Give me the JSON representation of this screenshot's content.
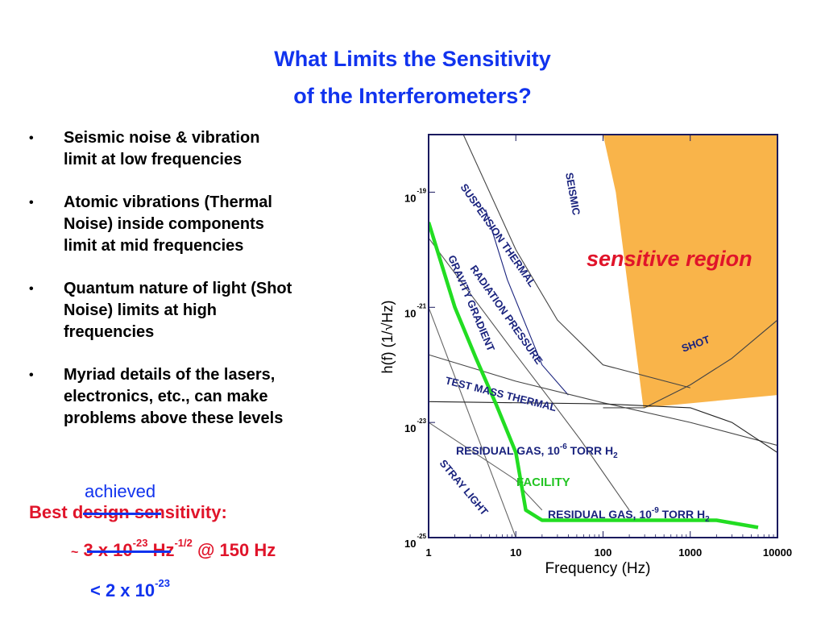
{
  "title": {
    "line1": "What Limits the Sensitivity",
    "line2": "of the Interferometers?"
  },
  "bullets": [
    {
      "symbol": "•",
      "text": [
        "Seismic noise & vibration",
        "limit at low frequencies"
      ]
    },
    {
      "symbol": "•",
      "text": [
        "Atomic vibrations (Thermal",
        "Noise) inside components",
        "limit at mid frequencies"
      ]
    },
    {
      "symbol": "•",
      "text": [
        "Quantum nature of light (Shot",
        "Noise) limits at high",
        "frequencies"
      ]
    },
    {
      "symbol": "•",
      "text": [
        "Myriad details of the lasers,",
        "electronics, etc., can make",
        "problems above these levels"
      ]
    }
  ],
  "sensitivity": {
    "achieved": "achieved",
    "best": "Best",
    "design": "design",
    "sensitivity_label": "sensitivity:",
    "tilde": "~",
    "design_value_base": "3 x 10",
    "design_value_exp": "-23",
    "unit_base": "Hz",
    "unit_exp": "-1/2",
    "at_freq": "@ 150 Hz",
    "achieved_value_base": "< 2 x 10",
    "achieved_value_exp": "-23"
  },
  "chart_data": {
    "type": "line",
    "xlabel": "Frequency (Hz)",
    "ylabel": "h(f)  (1/√Hz)",
    "xscale": "log",
    "yscale": "log",
    "xlim": [
      1,
      10000
    ],
    "ylim": [
      1e-25,
      1e-18
    ],
    "x_ticks": [
      "1",
      "10",
      "100",
      "1000",
      "10000"
    ],
    "y_ticks": [
      {
        "base": "10",
        "exp": "-19"
      },
      {
        "base": "10",
        "exp": "-21"
      },
      {
        "base": "10",
        "exp": "-23"
      },
      {
        "base": "10",
        "exp": "-25"
      }
    ],
    "region_label": "sensitive region",
    "region_color": "#f9b44a",
    "region_polygon": [
      [
        1.6,
        1e-18
      ],
      [
        10000,
        1e-18
      ],
      [
        10000,
        3e-23
      ],
      [
        290,
        1.8e-23
      ],
      [
        140,
        1e-19
      ],
      [
        100,
        1e-18
      ]
    ],
    "series": [
      {
        "name": "SEISMIC",
        "color": "#1a237e",
        "points": [
          [
            4.5,
            5e-20
          ],
          [
            8,
            3e-21
          ],
          [
            20,
            1e-22
          ],
          [
            40,
            3e-23
          ]
        ]
      },
      {
        "name": "SUSPENSION THERMAL",
        "color": "#444444",
        "points": [
          [
            2.5,
            1e-18
          ],
          [
            10,
            1e-20
          ],
          [
            30,
            6e-22
          ],
          [
            100,
            1e-22
          ],
          [
            1000,
            4e-23
          ]
        ]
      },
      {
        "name": "RADIATION PRESSURE",
        "color": "#555555",
        "points": [
          [
            1,
            1.6e-20
          ],
          [
            10,
            1.5e-22
          ],
          [
            30,
            1.7e-23
          ],
          [
            55,
            5e-24
          ],
          [
            200,
            3e-25
          ]
        ]
      },
      {
        "name": "GRAVITY GRADIENT",
        "color": "#666666",
        "points": [
          [
            1,
            1e-21
          ],
          [
            10,
            1e-25
          ]
        ]
      },
      {
        "name": "TEST MASS THERMAL",
        "color": "#444444",
        "points": [
          [
            1,
            1.5e-22
          ],
          [
            10,
            5.2e-23
          ],
          [
            100,
            2.2e-23
          ],
          [
            1000,
            1e-23
          ],
          [
            10000,
            4e-24
          ]
        ]
      },
      {
        "name": "SHOT",
        "color": "#444444",
        "points": [
          [
            100,
            1.8e-23
          ],
          [
            300,
            1.8e-23
          ],
          [
            1000,
            4.5e-23
          ],
          [
            3000,
            1.3e-22
          ],
          [
            10000,
            6e-22
          ]
        ]
      },
      {
        "name": "RESIDUAL GAS, 10-6 TORR H2",
        "color": "#222222",
        "points": [
          [
            1,
            2.3e-23
          ],
          [
            100,
            2.1e-23
          ],
          [
            1000,
            1.8e-23
          ],
          [
            3000,
            1e-23
          ],
          [
            10000,
            3e-24
          ]
        ]
      },
      {
        "name": "STRAY LIGHT",
        "color": "#666666",
        "points": [
          [
            1,
            1e-23
          ],
          [
            10,
            1e-24
          ],
          [
            13,
            6e-25
          ],
          [
            20,
            3e-25
          ]
        ]
      },
      {
        "name": "RESIDUAL GAS, 10-9 TORR H2",
        "color": "#1a237e",
        "points": []
      },
      {
        "name": "FACILITY",
        "color": "#22dd22",
        "points": [
          [
            1,
            3e-20
          ],
          [
            2,
            1e-21
          ],
          [
            3.5,
            1.3e-22
          ],
          [
            6,
            2e-23
          ],
          [
            10,
            3e-24
          ],
          [
            13,
            3e-25
          ],
          [
            20,
            2e-25
          ],
          [
            2000,
            2e-25
          ],
          [
            6000,
            1.5e-25
          ]
        ]
      }
    ],
    "annotations": [
      {
        "text": "SEISMIC",
        "color": "#1a237e"
      },
      {
        "text": "SUSPENSION THERMAL",
        "color": "#1a237e"
      },
      {
        "text": "RADIATION PRESSURE",
        "color": "#1a237e"
      },
      {
        "text": "GRAVITY GRADIENT",
        "color": "#1a237e"
      },
      {
        "text": "TEST MASS THERMAL",
        "color": "#1a237e"
      },
      {
        "text": "SHOT",
        "color": "#1a237e"
      },
      {
        "text": "RESIDUAL GAS, 10",
        "sup": "-6",
        "tail": " TORR H",
        "sub": "2",
        "color": "#1a237e"
      },
      {
        "text": "STRAY LIGHT",
        "color": "#1a237e"
      },
      {
        "text": "RESIDUAL GAS, 10",
        "sup": "-9",
        "tail": " TORR H",
        "sub": "2",
        "color": "#1a237e"
      },
      {
        "text": "FACILITY",
        "color": "#22c422"
      },
      {
        "text": "sensitive region",
        "color": "#e0142a"
      }
    ]
  }
}
